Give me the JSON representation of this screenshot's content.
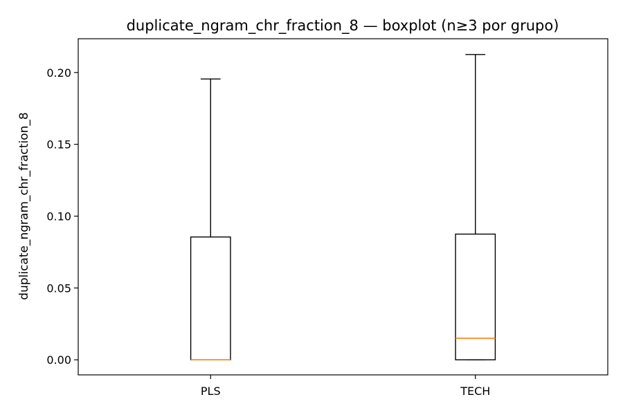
{
  "chart_data": {
    "type": "boxplot",
    "title": "duplicate_ngram_chr_fraction_8 — boxplot (n≥3 por grupo)",
    "xlabel": "",
    "ylabel": "duplicate_ngram_chr_fraction_8",
    "ylim": [
      -0.0105,
      0.2235
    ],
    "yticks": [
      0.0,
      0.05,
      0.1,
      0.15,
      0.2
    ],
    "ytick_labels": [
      "0.00",
      "0.05",
      "0.10",
      "0.15",
      "0.20"
    ],
    "categories": [
      "PLS",
      "TECH"
    ],
    "grid": false,
    "boxes": [
      {
        "label": "PLS",
        "whisker_low": 0.0,
        "q1": 0.0,
        "median": 0.0,
        "q3": 0.0855,
        "whisker_high": 0.1955
      },
      {
        "label": "TECH",
        "whisker_low": 0.0,
        "q1": 0.0,
        "median": 0.015,
        "q3": 0.0875,
        "whisker_high": 0.2125
      }
    ],
    "colors": {
      "box": "#000000",
      "median": "#ff7f0e",
      "axes": "#000000"
    }
  }
}
